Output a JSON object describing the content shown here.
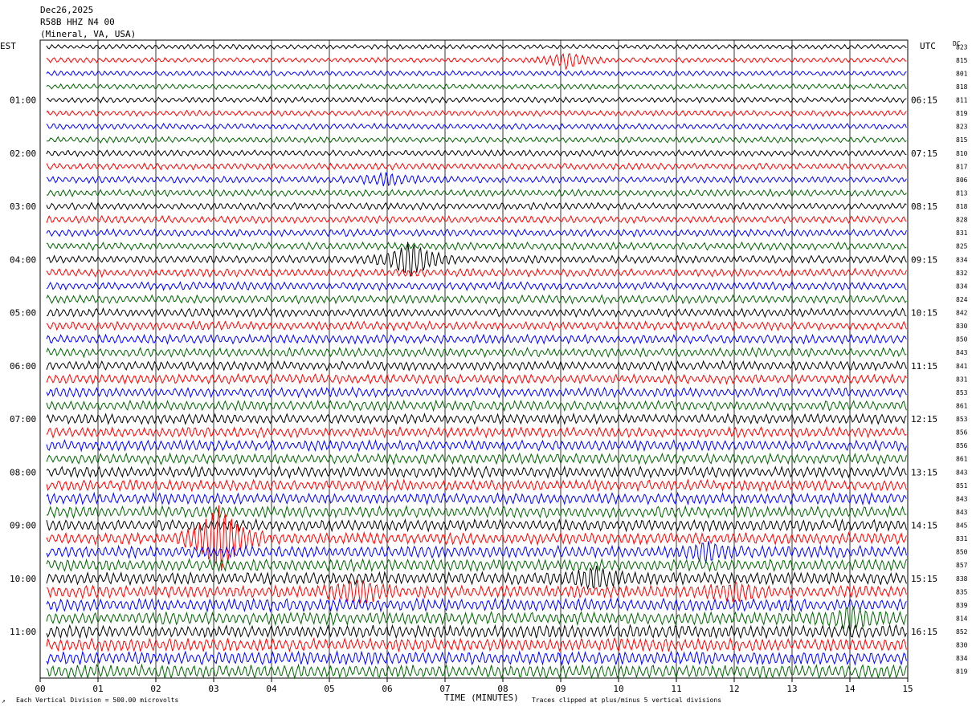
{
  "header": {
    "date": "Dec26,2025",
    "station": "R58B HHZ N4 00",
    "location": "(Mineral, VA, USA)"
  },
  "chart_data": {
    "type": "line",
    "title": "",
    "xlabel": "TIME (MINUTES)",
    "left_axis_title": "EST",
    "right_axis_title": "UTC",
    "dc_title": "DC",
    "x_ticks": [
      "00",
      "01",
      "02",
      "03",
      "04",
      "05",
      "06",
      "07",
      "08",
      "09",
      "10",
      "11",
      "12",
      "13",
      "14",
      "15"
    ],
    "xlim": [
      0,
      15
    ],
    "left_hour_labels": [
      "01:00",
      "02:00",
      "03:00",
      "04:00",
      "05:00",
      "06:00",
      "07:00",
      "08:00",
      "09:00",
      "10:00",
      "11:00"
    ],
    "right_hour_labels": [
      "06:15",
      "07:15",
      "08:15",
      "09:15",
      "10:15",
      "11:15",
      "12:15",
      "13:15",
      "14:15",
      "15:15",
      "16:15"
    ],
    "trace_minutes": 15,
    "trace_colors": [
      "#000000",
      "#ff0000",
      "#0000ff",
      "#006400"
    ],
    "dc_offsets": [
      "823",
      "815",
      "801",
      "818",
      "811",
      "819",
      "823",
      "815",
      "810",
      "817",
      "806",
      "813",
      "818",
      "828",
      "831",
      "825",
      "834",
      "832",
      "834",
      "824",
      "842",
      "830",
      "850",
      "843",
      "841",
      "831",
      "853",
      "861",
      "853",
      "856",
      "856",
      "861",
      "843",
      "851",
      "843",
      "843",
      "845",
      "831",
      "850",
      "857",
      "838",
      "835",
      "839",
      "814",
      "852",
      "830",
      "834",
      "819"
    ],
    "events": [
      {
        "trace": 1,
        "minute": 9.1,
        "amplitude": 3
      },
      {
        "trace": 10,
        "minute": 6.0,
        "amplitude": 2
      },
      {
        "trace": 16,
        "minute": 6.4,
        "amplitude": 7
      },
      {
        "trace": 37,
        "minute": 3.1,
        "amplitude": 14
      },
      {
        "trace": 38,
        "minute": 11.5,
        "amplitude": 3
      },
      {
        "trace": 40,
        "minute": 9.6,
        "amplitude": 4
      },
      {
        "trace": 41,
        "minute": 5.5,
        "amplitude": 4
      },
      {
        "trace": 41,
        "minute": 12.0,
        "amplitude": 3
      },
      {
        "trace": 43,
        "minute": 14.0,
        "amplitude": 4
      }
    ],
    "footer_left": "Each Vertical Division =  500.00 microvolts",
    "footer_right": "Traces clipped at plus/minus 5 vertical divisions"
  }
}
